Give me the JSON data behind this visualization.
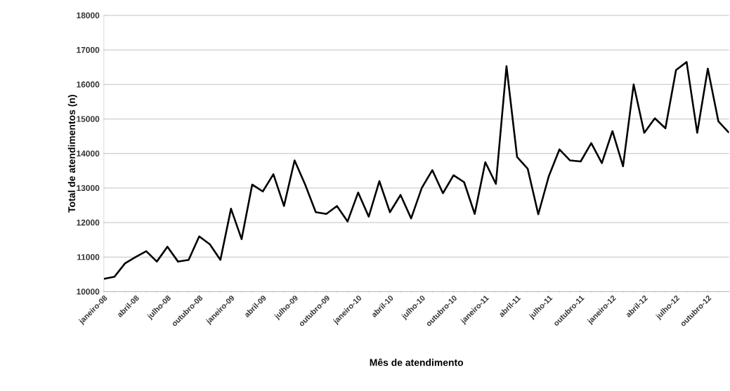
{
  "chart_data": {
    "type": "line",
    "xlabel": "Mês de atendimento",
    "ylabel": "Total de atendimentos (n)",
    "categories": [
      "janeiro-08",
      null,
      null,
      "abril-08",
      null,
      null,
      "julho-08",
      null,
      null,
      "outubro-08",
      null,
      null,
      "janeiro-09",
      null,
      null,
      "abril-09",
      null,
      null,
      "julho-09",
      null,
      null,
      "outubro-09",
      null,
      null,
      "janeiro-10",
      null,
      null,
      "abril-10",
      null,
      null,
      "julho-10",
      null,
      null,
      "outubro-10",
      null,
      null,
      "janeiro-11",
      null,
      null,
      "abril-11",
      null,
      null,
      "julho-11",
      null,
      null,
      "outubro-11",
      null,
      null,
      "janeiro-12",
      null,
      null,
      "abril-12",
      null,
      null,
      "julho-12",
      null,
      null,
      "outubro-12",
      null,
      null
    ],
    "series": [
      {
        "color": "#000000",
        "values": [
          10370,
          10430,
          10820,
          11000,
          11170,
          10870,
          11300,
          10870,
          10920,
          11600,
          11370,
          10920,
          12400,
          11520,
          13100,
          12900,
          13400,
          12480,
          13800,
          13100,
          12300,
          12250,
          12480,
          12030,
          12870,
          12170,
          13200,
          12300,
          12800,
          12120,
          13000,
          13520,
          12850,
          13370,
          13170,
          12250,
          13750,
          13120,
          16530,
          13900,
          13560,
          12240,
          13350,
          14120,
          13800,
          13770,
          14300,
          13720,
          14650,
          13630,
          16000,
          14600,
          15020,
          14730,
          16420,
          16650,
          14600,
          16460,
          14930,
          14600
        ]
      }
    ],
    "ylim": [
      10000,
      18000
    ],
    "yticks": [
      10000,
      11000,
      12000,
      13000,
      14000,
      15000,
      16000,
      17000,
      18000
    ],
    "grid": "y",
    "legend": false,
    "marker": "none",
    "line_style": "solid"
  }
}
